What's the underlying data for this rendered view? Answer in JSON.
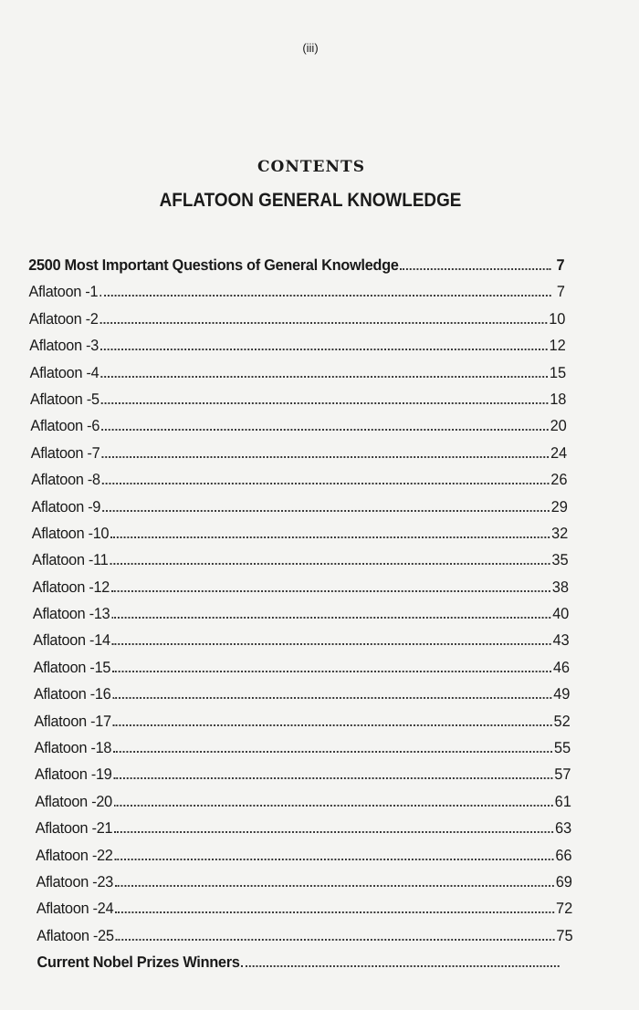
{
  "page_number": "(iii)",
  "heading": "CONTENTS",
  "subtitle": "AFLATOON GENERAL KNOWLEDGE",
  "entries": [
    {
      "title": "2500 Most Important Questions of General Knowledge",
      "page": "7",
      "bold": true
    },
    {
      "title": "Aflatoon -1",
      "page": "7"
    },
    {
      "title": "Aflatoon -2",
      "page": "10"
    },
    {
      "title": "Aflatoon -3",
      "page": "12"
    },
    {
      "title": "Aflatoon -4",
      "page": "15"
    },
    {
      "title": "Aflatoon -5",
      "page": "18"
    },
    {
      "title": "Aflatoon -6",
      "page": "20"
    },
    {
      "title": "Aflatoon -7",
      "page": "24"
    },
    {
      "title": "Aflatoon -8",
      "page": "26"
    },
    {
      "title": "Aflatoon -9",
      "page": "29"
    },
    {
      "title": "Aflatoon -10",
      "page": "32"
    },
    {
      "title": "Aflatoon -11",
      "page": "35"
    },
    {
      "title": "Aflatoon -12",
      "page": "38"
    },
    {
      "title": "Aflatoon -13",
      "page": "40"
    },
    {
      "title": "Aflatoon -14",
      "page": "43"
    },
    {
      "title": "Aflatoon -15",
      "page": "46"
    },
    {
      "title": "Aflatoon -16",
      "page": "49"
    },
    {
      "title": "Aflatoon -17",
      "page": "52"
    },
    {
      "title": "Aflatoon -18",
      "page": "55"
    },
    {
      "title": "Aflatoon -19",
      "page": "57"
    },
    {
      "title": "Aflatoon -20",
      "page": "61"
    },
    {
      "title": "Aflatoon -21",
      "page": "63"
    },
    {
      "title": "Aflatoon -22",
      "page": "66"
    },
    {
      "title": "Aflatoon -23",
      "page": "69"
    },
    {
      "title": "Aflatoon -24",
      "page": "72"
    },
    {
      "title": "Aflatoon -25",
      "page": "75"
    },
    {
      "title": "Current Nobel Prizes Winners",
      "page": "",
      "bold": true
    }
  ]
}
